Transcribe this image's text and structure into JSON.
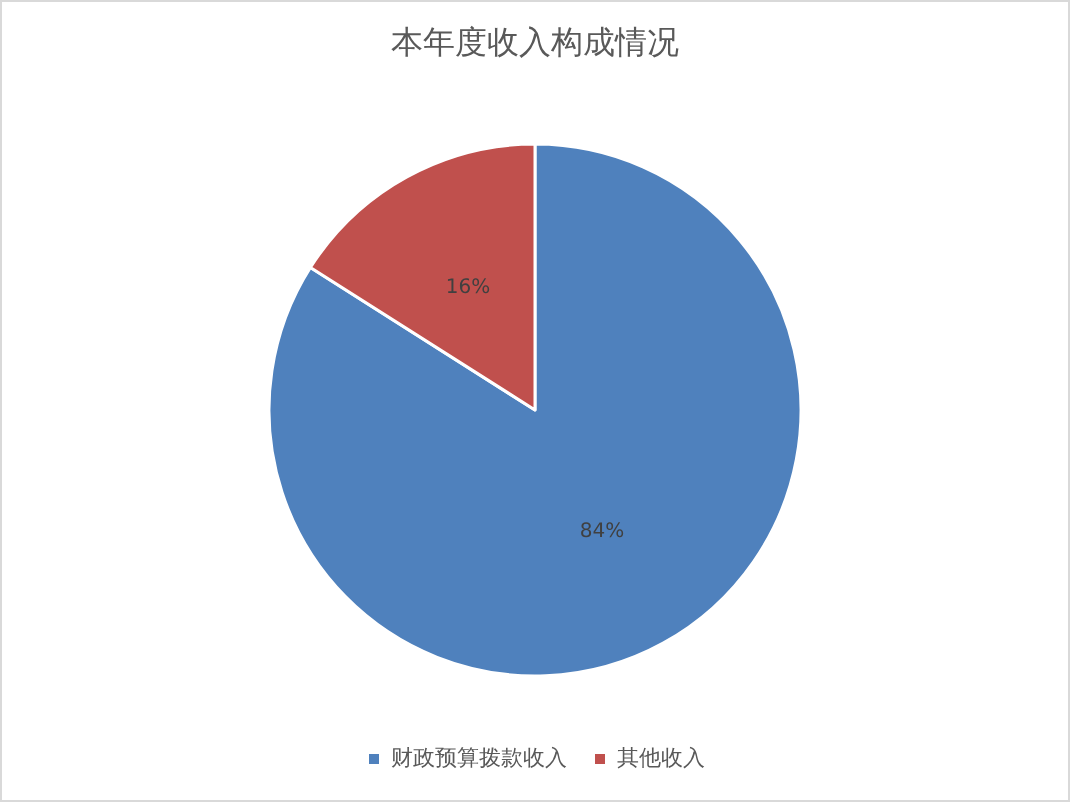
{
  "chart_data": {
    "type": "pie",
    "title": "本年度收入构成情况",
    "categories": [
      "财政预算拨款收入",
      "其他收入"
    ],
    "values": [
      84,
      16
    ],
    "colors": [
      "#4f81bd",
      "#c0504d"
    ],
    "value_labels": [
      "84%",
      "16%"
    ],
    "legend": "bottom"
  }
}
